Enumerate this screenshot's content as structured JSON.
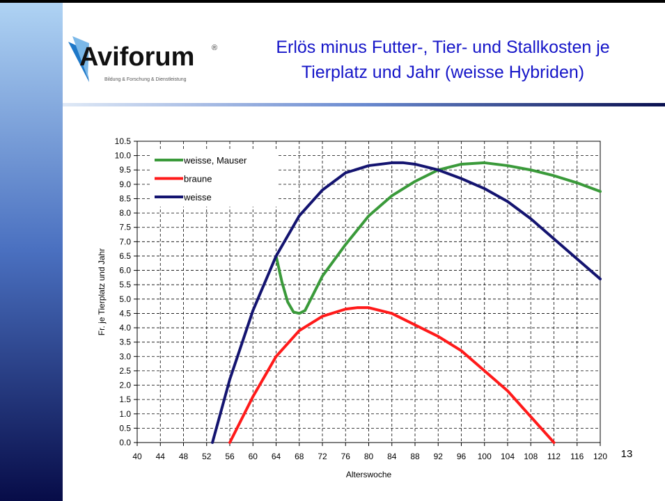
{
  "header": {
    "logo": "Aviforum",
    "logo_mark": "®",
    "tagline": "Bildung & Forschung & Dienstleistung",
    "title": [
      "Erlös minus Futter-, Tier- und Stallkosten je",
      "Tierplatz und Jahr (weisse Hybriden)"
    ]
  },
  "slide_number": "13",
  "chart_data": {
    "type": "line",
    "xlabel": "Alterswoche",
    "ylabel": "Fr. je Tierplatz und Jahr",
    "xlim": [
      40,
      120
    ],
    "xticks": [
      40,
      44,
      48,
      52,
      56,
      60,
      64,
      68,
      72,
      76,
      80,
      84,
      88,
      92,
      96,
      100,
      104,
      108,
      112,
      116,
      120
    ],
    "ylim": [
      0,
      10.5
    ],
    "yticks": [
      {
        "value": 0,
        "label": "0.0"
      },
      0.5,
      {
        "value": 1,
        "label": "1.0"
      },
      1.5,
      {
        "value": 2,
        "label": "2.0"
      },
      2.5,
      {
        "value": 3,
        "label": "3.0"
      },
      3.5,
      {
        "value": 4,
        "label": "4.0"
      },
      4.5,
      {
        "value": 5,
        "label": "5.0"
      },
      5.5,
      {
        "value": 6,
        "label": "6.0"
      },
      6.5,
      {
        "value": 7,
        "label": "7.0"
      },
      7.5,
      {
        "value": 8,
        "label": "8.0"
      },
      8.5,
      {
        "value": 9,
        "label": "9.0"
      },
      9.5,
      {
        "value": 10,
        "label": "10.0"
      },
      10.5
    ],
    "grid": true,
    "legend": "upper left",
    "series": [
      {
        "name": "weisse, Mauser",
        "color": "#3a9a3a",
        "x": [
          64,
          65,
          66,
          67,
          68,
          69,
          70,
          72,
          76,
          80,
          84,
          88,
          92,
          96,
          100,
          104,
          108,
          112,
          116,
          120
        ],
        "values": [
          6.5,
          5.6,
          4.9,
          4.55,
          4.5,
          4.6,
          5.0,
          5.8,
          6.9,
          7.9,
          8.6,
          9.1,
          9.5,
          9.7,
          9.75,
          9.65,
          9.5,
          9.3,
          9.05,
          8.75
        ]
      },
      {
        "name": "braune",
        "color": "#ff1a1a",
        "x": [
          56,
          60,
          64,
          68,
          72,
          76,
          78,
          80,
          84,
          88,
          92,
          96,
          100,
          104,
          108,
          112
        ],
        "values": [
          0,
          1.6,
          3.0,
          3.9,
          4.4,
          4.65,
          4.7,
          4.7,
          4.5,
          4.1,
          3.7,
          3.2,
          2.5,
          1.8,
          0.9,
          0
        ]
      },
      {
        "name": "weisse",
        "color": "#141470",
        "x": [
          53,
          56,
          60,
          64,
          68,
          72,
          76,
          80,
          84,
          86,
          88,
          92,
          96,
          100,
          104,
          108,
          112,
          116,
          120
        ],
        "values": [
          0,
          2.2,
          4.6,
          6.5,
          7.9,
          8.8,
          9.4,
          9.65,
          9.75,
          9.75,
          9.7,
          9.5,
          9.2,
          8.85,
          8.4,
          7.8,
          7.1,
          6.4,
          5.7
        ]
      }
    ]
  }
}
